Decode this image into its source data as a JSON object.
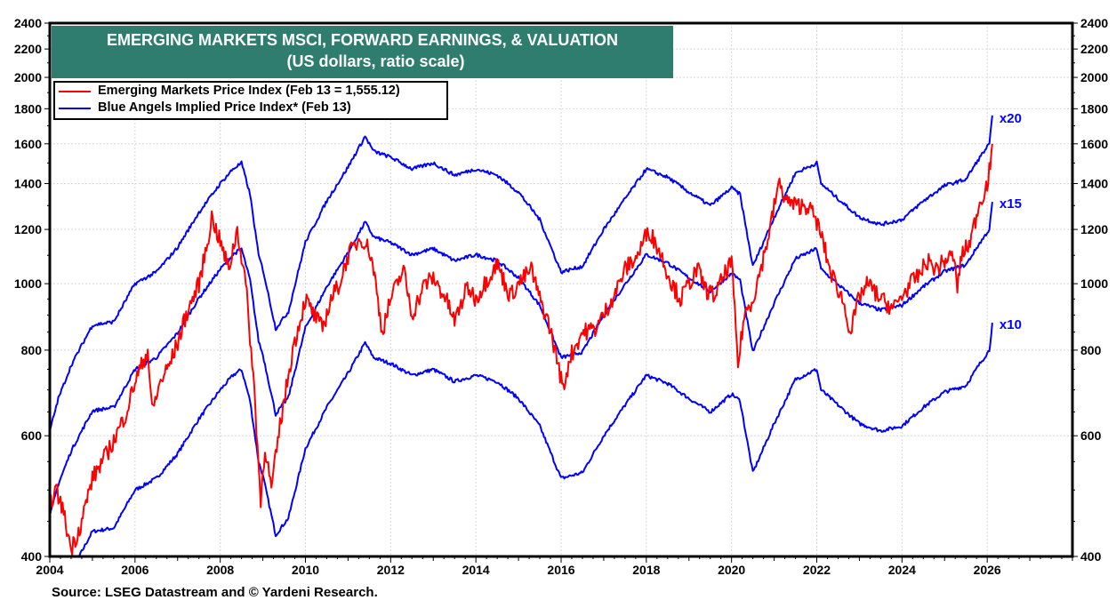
{
  "chart_data": {
    "type": "line",
    "title": "EMERGING MARKETS MSCI, FORWARD EARNINGS, & VALUATION",
    "subtitle": "(US dollars, ratio scale)",
    "xlabel": "",
    "ylabel": "",
    "yscale": "log",
    "xlim": [
      2004,
      2028
    ],
    "ylim": [
      400,
      2400
    ],
    "grid": true,
    "legend_position": "top-left",
    "x_ticks": [
      "2004",
      "2006",
      "2008",
      "2010",
      "2012",
      "2014",
      "2016",
      "2018",
      "2020",
      "2022",
      "2024",
      "2026"
    ],
    "y_ticks": [
      "400",
      "600",
      "800",
      "1000",
      "1200",
      "1400",
      "1600",
      "1800",
      "2000",
      "2200",
      "2400"
    ],
    "legend": [
      {
        "label": "Emerging Markets Price Index (Feb 13 = 1,555.12)",
        "color": "#ff0000"
      },
      {
        "label": "Blue Angels Implied Price Index* (Feb 13)",
        "color": "#0000ff"
      }
    ],
    "series": [
      {
        "name": "Emerging Markets Price Index",
        "color": "#ff0000",
        "x": [
          2004.0,
          2004.15,
          2004.3,
          2004.5,
          2004.7,
          2005.0,
          2005.3,
          2005.5,
          2005.8,
          2006.0,
          2006.3,
          2006.4,
          2006.6,
          2006.8,
          2007.0,
          2007.2,
          2007.5,
          2007.7,
          2007.8,
          2008.0,
          2008.2,
          2008.4,
          2008.6,
          2008.8,
          2008.95,
          2009.05,
          2009.2,
          2009.4,
          2009.7,
          2010.0,
          2010.2,
          2010.4,
          2010.6,
          2010.8,
          2011.0,
          2011.3,
          2011.5,
          2011.6,
          2011.8,
          2012.0,
          2012.3,
          2012.5,
          2012.8,
          2013.0,
          2013.3,
          2013.5,
          2013.8,
          2014.0,
          2014.2,
          2014.5,
          2014.8,
          2015.0,
          2015.3,
          2015.5,
          2015.7,
          2015.9,
          2016.05,
          2016.2,
          2016.5,
          2016.8,
          2017.0,
          2017.3,
          2017.5,
          2017.8,
          2018.05,
          2018.3,
          2018.6,
          2018.8,
          2019.0,
          2019.2,
          2019.4,
          2019.6,
          2019.8,
          2020.0,
          2020.15,
          2020.3,
          2020.5,
          2020.7,
          2020.9,
          2021.1,
          2021.3,
          2021.5,
          2021.8,
          2022.0,
          2022.15,
          2022.3,
          2022.6,
          2022.8,
          2023.0,
          2023.2,
          2023.5,
          2023.8,
          2024.0,
          2024.2,
          2024.4,
          2024.6,
          2024.8,
          2025.0,
          2025.2,
          2025.3,
          2025.4,
          2025.6,
          2025.8,
          2026.0,
          2026.12
        ],
        "values": [
          480,
          500,
          470,
          410,
          440,
          520,
          560,
          590,
          650,
          720,
          800,
          650,
          720,
          760,
          820,
          900,
          1000,
          1150,
          1250,
          1150,
          1050,
          1200,
          1000,
          700,
          480,
          580,
          500,
          620,
          800,
          950,
          900,
          860,
          950,
          1000,
          1100,
          1170,
          1120,
          1050,
          850,
          950,
          1050,
          900,
          1000,
          1020,
          950,
          880,
          990,
          950,
          1000,
          1070,
          960,
          1000,
          1050,
          950,
          880,
          780,
          700,
          780,
          850,
          860,
          900,
          980,
          1050,
          1100,
          1200,
          1120,
          1000,
          950,
          1000,
          1050,
          980,
          960,
          1020,
          1080,
          760,
          900,
          950,
          1060,
          1200,
          1400,
          1320,
          1300,
          1300,
          1230,
          1150,
          1050,
          950,
          850,
          960,
          1000,
          950,
          920,
          960,
          1000,
          1030,
          1080,
          1050,
          1080,
          1100,
          990,
          1100,
          1150,
          1300,
          1400,
          1555
        ]
      },
      {
        "name": "Blue Angels Implied Price Index x20",
        "label": "x20",
        "multiplier": 20,
        "color": "#0000ff",
        "x": [
          2004.0,
          2004.2,
          2004.5,
          2005.0,
          2005.5,
          2006.0,
          2006.5,
          2007.0,
          2007.5,
          2008.0,
          2008.3,
          2008.5,
          2008.7,
          2008.9,
          2009.0,
          2009.3,
          2009.6,
          2010.0,
          2010.5,
          2011.0,
          2011.4,
          2011.6,
          2012.0,
          2012.5,
          2013.0,
          2013.5,
          2014.0,
          2014.5,
          2015.0,
          2015.5,
          2016.0,
          2016.5,
          2017.0,
          2017.5,
          2018.0,
          2018.5,
          2019.0,
          2019.5,
          2020.0,
          2020.2,
          2020.5,
          2021.0,
          2021.5,
          2022.0,
          2022.1,
          2022.5,
          2023.0,
          2023.5,
          2024.0,
          2024.5,
          2025.0,
          2025.5,
          2025.8,
          2026.05,
          2026.12
        ],
        "values": [
          610,
          680,
          760,
          870,
          880,
          1000,
          1040,
          1130,
          1270,
          1400,
          1470,
          1500,
          1350,
          1100,
          1050,
          860,
          910,
          1150,
          1320,
          1480,
          1640,
          1560,
          1530,
          1470,
          1500,
          1440,
          1470,
          1440,
          1360,
          1240,
          1040,
          1060,
          1200,
          1330,
          1470,
          1430,
          1360,
          1300,
          1380,
          1350,
          1060,
          1250,
          1450,
          1500,
          1400,
          1330,
          1250,
          1220,
          1240,
          1320,
          1390,
          1420,
          1520,
          1600,
          1750
        ]
      },
      {
        "name": "Blue Angels Implied Price Index x15",
        "label": "x15",
        "multiplier": 15,
        "color": "#0000ff",
        "derived_from": "x20 values × 0.75"
      },
      {
        "name": "Blue Angels Implied Price Index x10",
        "label": "x10",
        "multiplier": 10,
        "color": "#0000ff",
        "derived_from": "x20 values × 0.5"
      }
    ],
    "footnote": "Source: LSEG Datastream and © Yardeni Research."
  }
}
